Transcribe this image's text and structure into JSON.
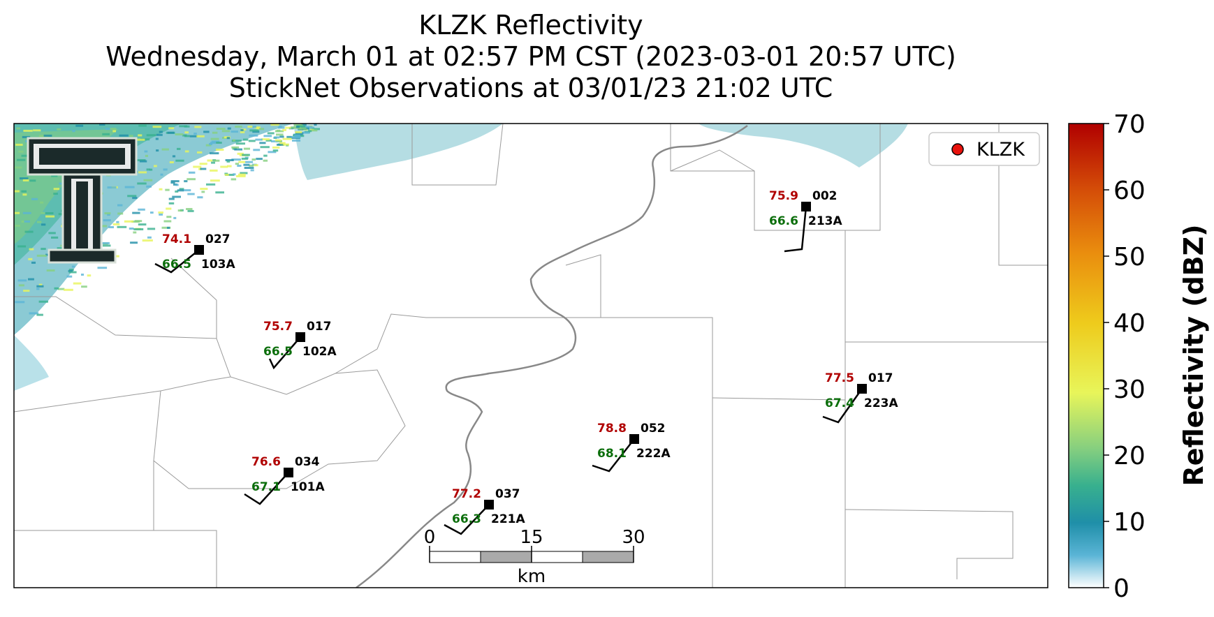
{
  "title": {
    "line1": "KLZK Reflectivity",
    "line2": "Wednesday, March 01 at 02:57 PM CST (2023-03-01 20:57 UTC)",
    "line3": "StickNet Observations at 03/01/23 21:02 UTC"
  },
  "legend": {
    "label": "KLZK",
    "marker_color": "#e8120c"
  },
  "colorbar": {
    "label": "Reflectivity (dBZ)",
    "ticks": [
      "0",
      "10",
      "20",
      "30",
      "40",
      "50",
      "60",
      "70"
    ],
    "range": [
      0,
      70
    ],
    "colors": [
      "#ffffff",
      "#5ab4d6",
      "#1f8fa8",
      "#38b08e",
      "#86cf7f",
      "#e8f55a",
      "#eecb1c",
      "#ea8e0e",
      "#d44c08",
      "#b00000"
    ]
  },
  "scale_bar": {
    "ticks": [
      "0",
      "15",
      "30"
    ],
    "unit": "km"
  },
  "stations": [
    {
      "id": "103A",
      "temp": "74.1",
      "dew": "66.5",
      "dir": "027"
    },
    {
      "id": "102A",
      "temp": "75.7",
      "dew": "66.5",
      "dir": "017"
    },
    {
      "id": "101A",
      "temp": "76.6",
      "dew": "67.1",
      "dir": "034"
    },
    {
      "id": "221A",
      "temp": "77.2",
      "dew": "66.3",
      "dir": "037"
    },
    {
      "id": "222A",
      "temp": "78.8",
      "dew": "68.1",
      "dir": "052"
    },
    {
      "id": "213A",
      "temp": "75.9",
      "dew": "66.6",
      "dir": "002"
    },
    {
      "id": "223A",
      "temp": "77.5",
      "dew": "67.4",
      "dir": "017"
    }
  ],
  "colors": {
    "temp": "#b00000",
    "dew": "#0b6e0b",
    "river": "#888888",
    "county": "#9a9a9a"
  },
  "logo": {
    "icon": "texas-tech-double-t-logo"
  }
}
